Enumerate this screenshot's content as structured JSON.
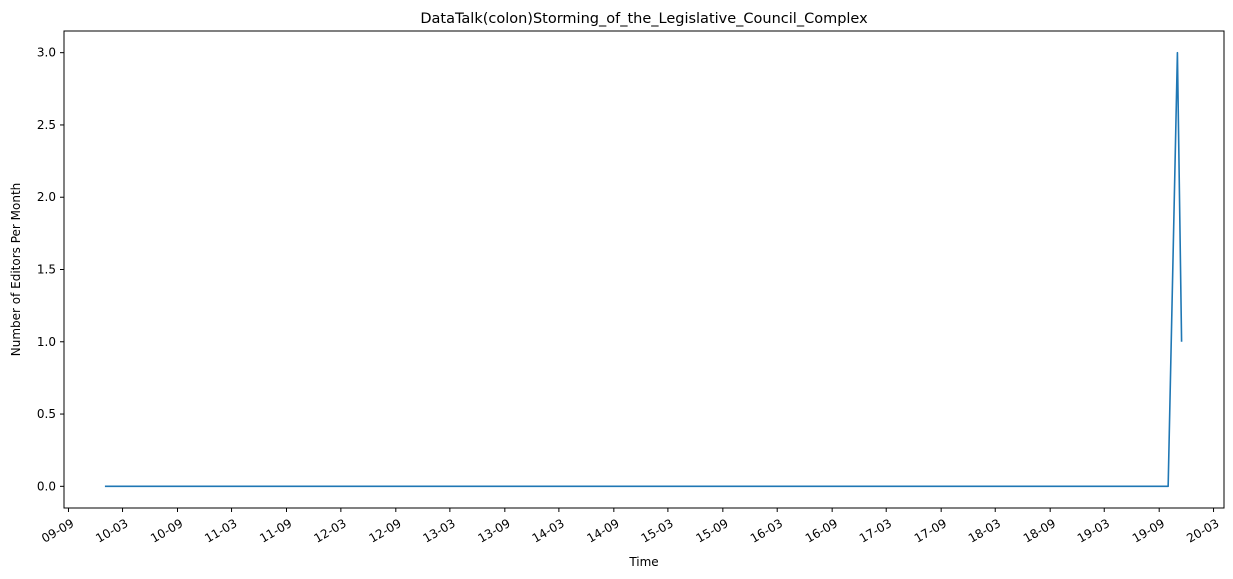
{
  "chart_data": {
    "type": "line",
    "title": "DataTalk(colon)Storming_of_the_Legislative_Council_Complex",
    "xlabel": "Time",
    "ylabel": "Number of Editors Per Month",
    "grid": false,
    "legend": "none",
    "series_color": "#1f77b4",
    "xlim": [
      "2009-08-17",
      "2020-04-05"
    ],
    "ylim": [
      -0.15,
      3.15
    ],
    "x_ticks": [
      {
        "date": "2009-09-01",
        "label": "09-09"
      },
      {
        "date": "2010-03-01",
        "label": "10-03"
      },
      {
        "date": "2010-09-01",
        "label": "10-09"
      },
      {
        "date": "2011-03-01",
        "label": "11-03"
      },
      {
        "date": "2011-09-01",
        "label": "11-09"
      },
      {
        "date": "2012-03-01",
        "label": "12-03"
      },
      {
        "date": "2012-09-01",
        "label": "12-09"
      },
      {
        "date": "2013-03-01",
        "label": "13-03"
      },
      {
        "date": "2013-09-01",
        "label": "13-09"
      },
      {
        "date": "2014-03-01",
        "label": "14-03"
      },
      {
        "date": "2014-09-01",
        "label": "14-09"
      },
      {
        "date": "2015-03-01",
        "label": "15-03"
      },
      {
        "date": "2015-09-01",
        "label": "15-09"
      },
      {
        "date": "2016-03-01",
        "label": "16-03"
      },
      {
        "date": "2016-09-01",
        "label": "16-09"
      },
      {
        "date": "2017-03-01",
        "label": "17-03"
      },
      {
        "date": "2017-09-01",
        "label": "17-09"
      },
      {
        "date": "2018-03-01",
        "label": "18-03"
      },
      {
        "date": "2018-09-01",
        "label": "18-09"
      },
      {
        "date": "2019-03-01",
        "label": "19-03"
      },
      {
        "date": "2019-09-01",
        "label": "19-09"
      },
      {
        "date": "2020-03-01",
        "label": "20-03"
      }
    ],
    "y_ticks": [
      {
        "value": 0.0,
        "label": "0.0"
      },
      {
        "value": 0.5,
        "label": "0.5"
      },
      {
        "value": 1.0,
        "label": "1.0"
      },
      {
        "value": 1.5,
        "label": "1.5"
      },
      {
        "value": 2.0,
        "label": "2.0"
      },
      {
        "value": 2.5,
        "label": "2.5"
      },
      {
        "value": 3.0,
        "label": "3.0"
      }
    ],
    "series": [
      {
        "x": [
          "2010-01-01",
          "2019-10-01",
          "2019-11-01",
          "2019-11-15"
        ],
        "y": [
          0,
          0,
          3,
          1
        ]
      }
    ]
  }
}
